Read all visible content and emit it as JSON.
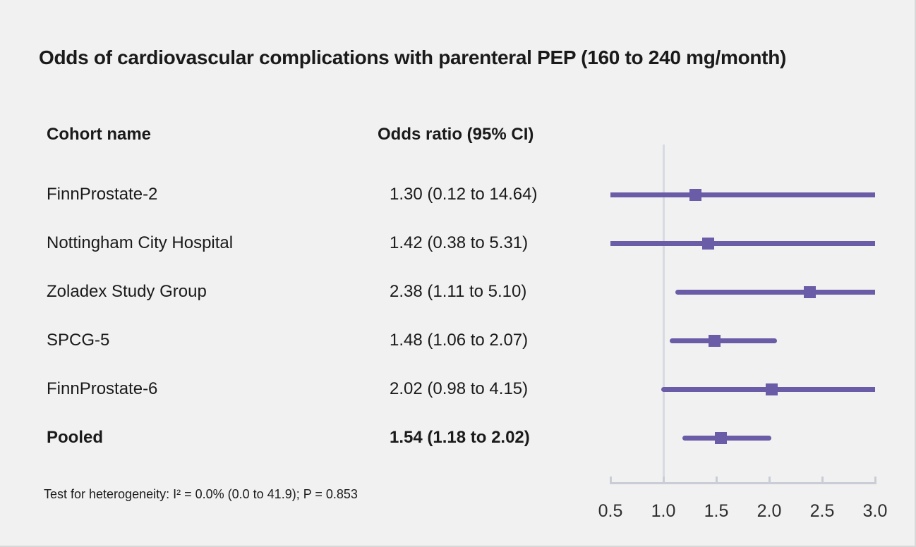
{
  "title": "Odds of cardiovascular complications with parenteral PEP (160 to 240 mg/month)",
  "columns": {
    "cohort": "Cohort name",
    "odds_ratio": "Odds ratio (95% CI)"
  },
  "footnote": "Test for heterogeneity: I² = 0.0% (0.0 to 41.9); P = 0.853",
  "colors": {
    "marker_purple": "#6a5ca6",
    "reference_line": "#d6dae3",
    "axis": "#c9cdd6",
    "background": "#f2f1f1",
    "text": "#1a1a1a"
  },
  "chart_data": {
    "type": "scatter",
    "subtype": "forest-plot",
    "title": "Odds of cardiovascular complications with parenteral PEP (160 to 240 mg/month)",
    "xlabel": "Odds ratio",
    "xlim": [
      0.5,
      3.0
    ],
    "reference_x": 1.0,
    "grid": false,
    "x_ticks": [
      0.5,
      1.0,
      1.5,
      2.0,
      2.5,
      3.0
    ],
    "tick_labels": [
      "0.5",
      "1.0",
      "1.5",
      "2.0",
      "2.5",
      "3.0"
    ],
    "series": [
      {
        "name": "FinnProstate-2",
        "or": 1.3,
        "ci_low": 0.12,
        "ci_high": 14.64,
        "label": "1.30 (0.12 to 14.64)",
        "pooled": false
      },
      {
        "name": "Nottingham City Hospital",
        "or": 1.42,
        "ci_low": 0.38,
        "ci_high": 5.31,
        "label": "1.42 (0.38 to 5.31)",
        "pooled": false
      },
      {
        "name": "Zoladex Study Group",
        "or": 2.38,
        "ci_low": 1.11,
        "ci_high": 5.1,
        "label": "2.38 (1.11 to 5.10)",
        "pooled": false
      },
      {
        "name": "SPCG-5",
        "or": 1.48,
        "ci_low": 1.06,
        "ci_high": 2.07,
        "label": "1.48 (1.06 to 2.07)",
        "pooled": false
      },
      {
        "name": "FinnProstate-6",
        "or": 2.02,
        "ci_low": 0.98,
        "ci_high": 4.15,
        "label": "2.02 (0.98 to 4.15)",
        "pooled": false
      },
      {
        "name": "Pooled",
        "or": 1.54,
        "ci_low": 1.18,
        "ci_high": 2.02,
        "label": "1.54 (1.18 to 2.02)",
        "pooled": true
      }
    ]
  }
}
